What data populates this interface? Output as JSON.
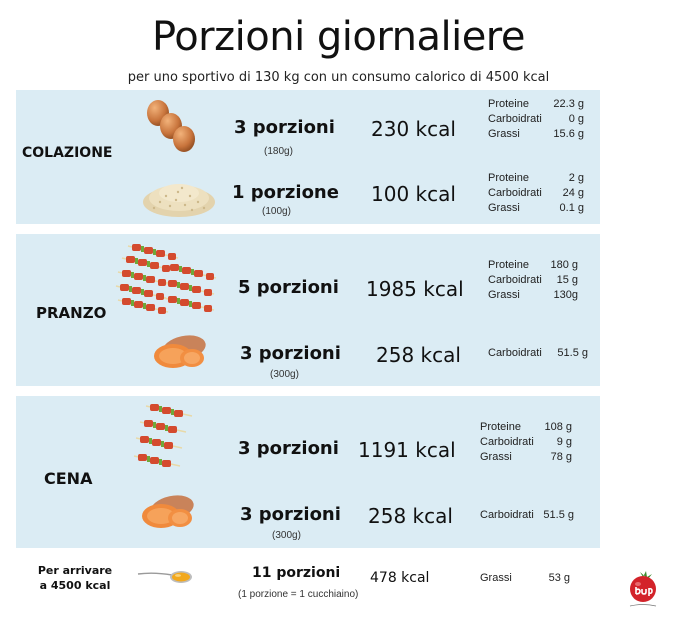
{
  "title": "Porzioni giornaliere",
  "subtitle": "per uno sportivo di 130 kg con un consumo calorico di 4500 kcal",
  "colazione": {
    "label": "COLAZIONE",
    "rows": [
      {
        "portions": "3 porzioni",
        "weight": "(180g)",
        "kcal": "230 kcal",
        "macros": [
          {
            "name": "Proteine",
            "value": "22.3 g"
          },
          {
            "name": "Carboidrati",
            "value": "0 g"
          },
          {
            "name": "Grassi",
            "value": "15.6 g"
          }
        ]
      },
      {
        "portions": "1 porzione",
        "weight": "(100g)",
        "kcal": "100 kcal",
        "macros": [
          {
            "name": "Proteine",
            "value": "2 g"
          },
          {
            "name": "Carboidrati",
            "value": "24 g"
          },
          {
            "name": "Grassi",
            "value": "0.1 g"
          }
        ]
      }
    ]
  },
  "pranzo": {
    "label": "PRANZO",
    "rows": [
      {
        "portions": "5 porzioni",
        "kcal": "1985 kcal",
        "macros": [
          {
            "name": "Proteine",
            "value": "180 g"
          },
          {
            "name": "Carboidrati",
            "value": "15 g"
          },
          {
            "name": "Grassi",
            "value": "130g"
          }
        ]
      },
      {
        "portions": "3 porzioni",
        "weight": "(300g)",
        "kcal": "258 kcal",
        "macros": [
          {
            "name": "Carboidrati",
            "value": "51.5 g"
          }
        ]
      }
    ]
  },
  "cena": {
    "label": "CENA",
    "rows": [
      {
        "portions": "3 porzioni",
        "kcal": "1191 kcal",
        "macros": [
          {
            "name": "Proteine",
            "value": "108 g"
          },
          {
            "name": "Carboidrati",
            "value": "9 g"
          },
          {
            "name": "Grassi",
            "value": "78 g"
          }
        ]
      },
      {
        "portions": "3 porzioni",
        "weight": "(300g)",
        "kcal": "258 kcal",
        "macros": [
          {
            "name": "Carboidrati",
            "value": "51.5 g"
          }
        ]
      }
    ]
  },
  "extra": {
    "label_line1": "Per arrivare",
    "label_line2": "a 4500 kcal",
    "portions": "11 porzioni",
    "note": "(1 porzione = 1 cucchiaino)",
    "kcal": "478 kcal",
    "macros": [
      {
        "name": "Grassi",
        "value": "53 g"
      }
    ]
  },
  "colors": {
    "panel": "#dbecf4",
    "logo": "#d3232a"
  },
  "icons": [
    "eggs-icon",
    "rice-icon",
    "meat-skewers-icon",
    "sweet-potato-icon",
    "honey-spoon-icon",
    "tomato-logo-icon"
  ]
}
